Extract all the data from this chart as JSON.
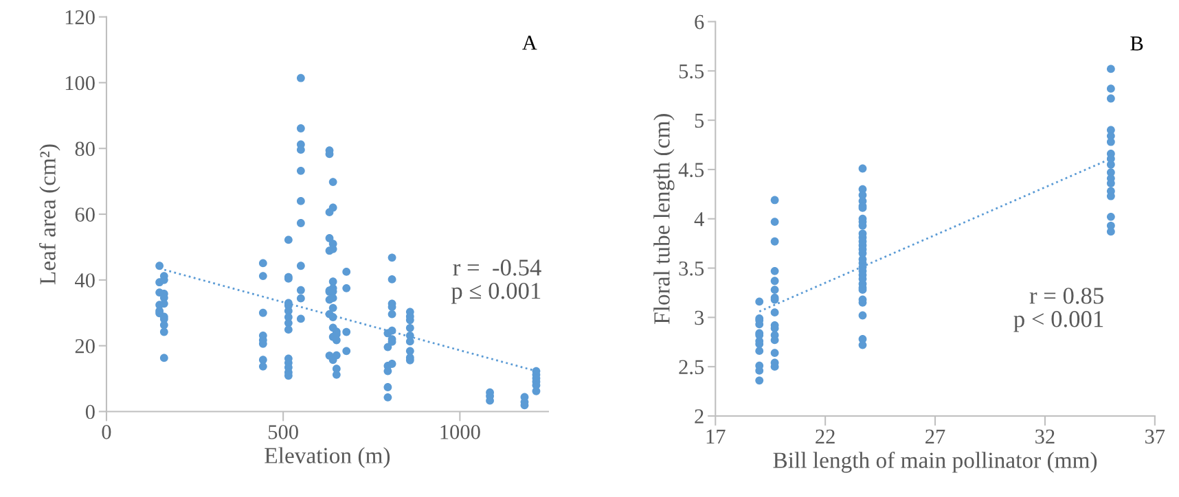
{
  "chart_data": [
    {
      "type": "scatter",
      "xlabel": "Elevation (m)",
      "ylabel": "Leaf area (cm²)",
      "annotations": [
        "A",
        "r =  -0.54\np ≤ 0.001"
      ],
      "xlim": [
        0,
        1250
      ],
      "xticks": [
        0,
        500,
        1000
      ],
      "ylim": [
        0,
        120
      ],
      "yticks": [
        0,
        20,
        40,
        60,
        80,
        100,
        120
      ],
      "grid": false,
      "marker": "circle",
      "series": [
        {
          "color": "#5b9bd5",
          "x": [
            150,
            150,
            150,
            150,
            150,
            150,
            163,
            163,
            163,
            163,
            163,
            163,
            163,
            163,
            163,
            163,
            443,
            443,
            443,
            443,
            443,
            443,
            443,
            443,
            515,
            515,
            515,
            515,
            515,
            515,
            515,
            515,
            515,
            515,
            515,
            515,
            515,
            515,
            550,
            550,
            550,
            550,
            550,
            550,
            550,
            550,
            550,
            550,
            550,
            631,
            631,
            631,
            631,
            631,
            631,
            631,
            631,
            631,
            631,
            641,
            641,
            641,
            641,
            641,
            641,
            641,
            641,
            641,
            641,
            641,
            641,
            641,
            651,
            651,
            651,
            651,
            651,
            651,
            679,
            679,
            679,
            679,
            796,
            796,
            796,
            796,
            796,
            796,
            808,
            808,
            808,
            808,
            808,
            808,
            808,
            808,
            808,
            859,
            859,
            859,
            859,
            859,
            859,
            859,
            859,
            859,
            1085,
            1085,
            1085,
            1183,
            1183,
            1183,
            1216,
            1216,
            1216,
            1216,
            1216,
            1216
          ],
          "values": [
            44.3,
            39.3,
            36.2,
            32.4,
            30.6,
            29.9,
            41.2,
            40,
            35.8,
            34.6,
            32.8,
            28.8,
            28.1,
            26.3,
            24.2,
            16.3,
            45.1,
            41.2,
            30,
            23.1,
            21.7,
            20.6,
            15.7,
            13.7,
            52.2,
            40.9,
            40.4,
            33,
            32.2,
            30.6,
            28.7,
            26.9,
            24.9,
            16.1,
            14.8,
            13.4,
            11.9,
            10.9,
            101.4,
            86.1,
            81.2,
            79.6,
            73.2,
            64,
            57.3,
            44.3,
            36.9,
            34.4,
            28.2,
            79.4,
            78.3,
            60.6,
            52.7,
            48.9,
            36.8,
            36.4,
            34,
            29.6,
            17,
            69.8,
            62,
            51,
            49.4,
            39.5,
            37.5,
            36.5,
            34.5,
            31.5,
            28.7,
            25.5,
            22.7,
            15.7,
            24.3,
            23.5,
            21.7,
            17.1,
            13,
            11.2,
            42.5,
            37.5,
            24.2,
            18.4,
            23.8,
            19.6,
            13.9,
            12.3,
            7.4,
            4.3,
            46.8,
            40.2,
            32.8,
            31.8,
            29.6,
            24.6,
            22,
            21.2,
            14.5,
            30.3,
            28.9,
            27.8,
            25.4,
            23.1,
            21.3,
            18.4,
            16.4,
            15.6,
            5.8,
            4.7,
            3.3,
            4.4,
            2.9,
            1.9,
            12.3,
            11.2,
            10.1,
            9.1,
            8,
            6.2
          ]
        },
        {
          "type": "line",
          "line_style": "dotted",
          "marker": "none",
          "color": "#5b9bd5",
          "x": [
            150,
            1216
          ],
          "values": [
            43.5,
            12.3
          ]
        }
      ]
    },
    {
      "type": "scatter",
      "xlabel": "Bill length of main pollinator (mm)",
      "ylabel": "Floral tube length (cm)",
      "annotations": [
        "B",
        "r = 0.85\np < 0.001"
      ],
      "xlim": [
        17,
        37
      ],
      "xticks": [
        17,
        22,
        27,
        32,
        37
      ],
      "ylim": [
        2,
        6
      ],
      "yticks": [
        2,
        2.5,
        3,
        3.5,
        4,
        4.5,
        5,
        5.5,
        6
      ],
      "grid": false,
      "marker": "circle",
      "series": [
        {
          "color": "#5b9bd5",
          "x": [
            19,
            19,
            19,
            19,
            19,
            19,
            19,
            19,
            19,
            19,
            19,
            19,
            19.7,
            19.7,
            19.7,
            19.7,
            19.7,
            19.7,
            19.7,
            19.7,
            19.7,
            19.7,
            19.7,
            19.7,
            19.7,
            19.7,
            19.7,
            19.7,
            23.7,
            23.7,
            23.7,
            23.7,
            23.7,
            23.7,
            23.7,
            23.7,
            23.7,
            23.7,
            23.7,
            23.7,
            23.7,
            23.7,
            23.7,
            23.7,
            23.7,
            23.7,
            23.7,
            23.7,
            23.7,
            23.7,
            23.7,
            23.7,
            23.7,
            23.7,
            23.7,
            23.7,
            23.7,
            35,
            35,
            35,
            35,
            35,
            35,
            35,
            35,
            35,
            35,
            35,
            35,
            35,
            35,
            35,
            35,
            35
          ],
          "values": [
            3.16,
            2.99,
            2.97,
            2.93,
            2.84,
            2.82,
            2.76,
            2.73,
            2.66,
            2.51,
            2.46,
            2.36,
            4.19,
            3.97,
            3.77,
            3.47,
            3.37,
            3.28,
            3.2,
            3.18,
            3.05,
            2.92,
            2.89,
            2.82,
            2.77,
            2.64,
            2.54,
            2.5,
            4.51,
            4.3,
            4.24,
            4.18,
            4.13,
            4.11,
            4.0,
            3.97,
            3.93,
            3.85,
            3.81,
            3.77,
            3.73,
            3.69,
            3.65,
            3.59,
            3.55,
            3.51,
            3.47,
            3.43,
            3.39,
            3.34,
            3.3,
            3.28,
            3.18,
            3.15,
            3.02,
            2.78,
            2.72,
            5.52,
            5.32,
            5.22,
            4.9,
            4.84,
            4.78,
            4.66,
            4.61,
            4.55,
            4.47,
            4.41,
            4.36,
            4.28,
            4.23,
            4.02,
            3.93,
            3.87
          ]
        },
        {
          "type": "line",
          "line_style": "dotted",
          "marker": "none",
          "color": "#5b9bd5",
          "x": [
            19,
            35
          ],
          "values": [
            3.06,
            4.61
          ]
        }
      ]
    }
  ]
}
